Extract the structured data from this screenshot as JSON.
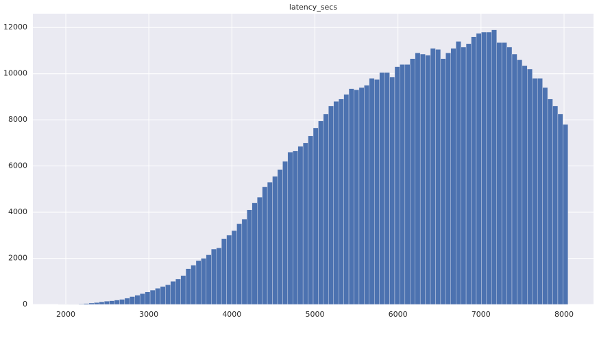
{
  "chart_data": {
    "type": "histogram",
    "title": "latency_secs",
    "color": "#4c72b0",
    "grid": true,
    "bins": [
      1911.0,
      1972.4,
      2033.7,
      2095.1,
      2156.5,
      2217.9,
      2279.2,
      2340.6,
      2402.0,
      2463.3,
      2524.7,
      2586.1,
      2647.4,
      2708.8,
      2770.2,
      2831.6,
      2892.9,
      2954.3,
      3015.7,
      3077.0,
      3138.4,
      3199.8,
      3261.1,
      3322.5,
      3383.9,
      3445.3,
      3506.6,
      3568.0,
      3629.4,
      3690.7,
      3752.1,
      3813.5,
      3874.8,
      3936.2,
      3997.6,
      4059.0,
      4120.3,
      4181.7,
      4243.1,
      4304.4,
      4365.8,
      4427.2,
      4488.5,
      4549.9,
      4611.3,
      4672.7,
      4734.0,
      4795.4,
      4856.8,
      4918.1,
      4979.5,
      5040.9,
      5102.2,
      5163.6,
      5225.0,
      5286.4,
      5347.7,
      5409.1,
      5470.5,
      5531.8,
      5593.2,
      5654.6,
      5715.9,
      5777.3,
      5838.7,
      5900.1,
      5961.4,
      6022.8,
      6084.2,
      6145.5,
      6206.9,
      6268.3,
      6329.6,
      6391.0,
      6452.4,
      6513.8,
      6575.1,
      6636.5,
      6697.9,
      6759.2,
      6820.6,
      6882.0,
      6943.3,
      7004.7,
      7066.1,
      7127.5,
      7188.8,
      7250.2,
      7311.6,
      7372.9,
      7434.3,
      7495.7,
      7557.0,
      7618.4,
      7679.8,
      7741.2,
      7802.5,
      7863.9,
      7925.3,
      7986.6,
      8048.0
    ],
    "counts": [
      1,
      1,
      3,
      8,
      20,
      40,
      60,
      80,
      110,
      140,
      160,
      190,
      220,
      270,
      340,
      400,
      470,
      540,
      620,
      700,
      780,
      850,
      1000,
      1100,
      1250,
      1550,
      1700,
      1900,
      2000,
      2150,
      2400,
      2450,
      2850,
      3000,
      3200,
      3500,
      3700,
      4100,
      4400,
      4650,
      5100,
      5300,
      5550,
      5850,
      6200,
      6600,
      6650,
      6850,
      7000,
      7300,
      7650,
      7950,
      8250,
      8600,
      8800,
      8900,
      9100,
      9350,
      9300,
      9400,
      9500,
      9800,
      9750,
      10050,
      10050,
      9850,
      10300,
      10400,
      10400,
      10650,
      10900,
      10850,
      10800,
      11100,
      11050,
      10650,
      10900,
      11100,
      11400,
      11150,
      11300,
      11600,
      11750,
      11800,
      11800,
      11900,
      11350,
      11350,
      11150,
      10850,
      10600,
      10350,
      10200,
      9800,
      9800,
      9400,
      8900,
      8600,
      8250,
      7800
    ],
    "xlim": [
      1604,
      8355
    ],
    "xticks": [
      2000,
      3000,
      4000,
      5000,
      6000,
      7000,
      8000
    ],
    "ylim": [
      0,
      12600
    ],
    "yticks": [
      0,
      2000,
      4000,
      6000,
      8000,
      10000,
      12000
    ]
  }
}
